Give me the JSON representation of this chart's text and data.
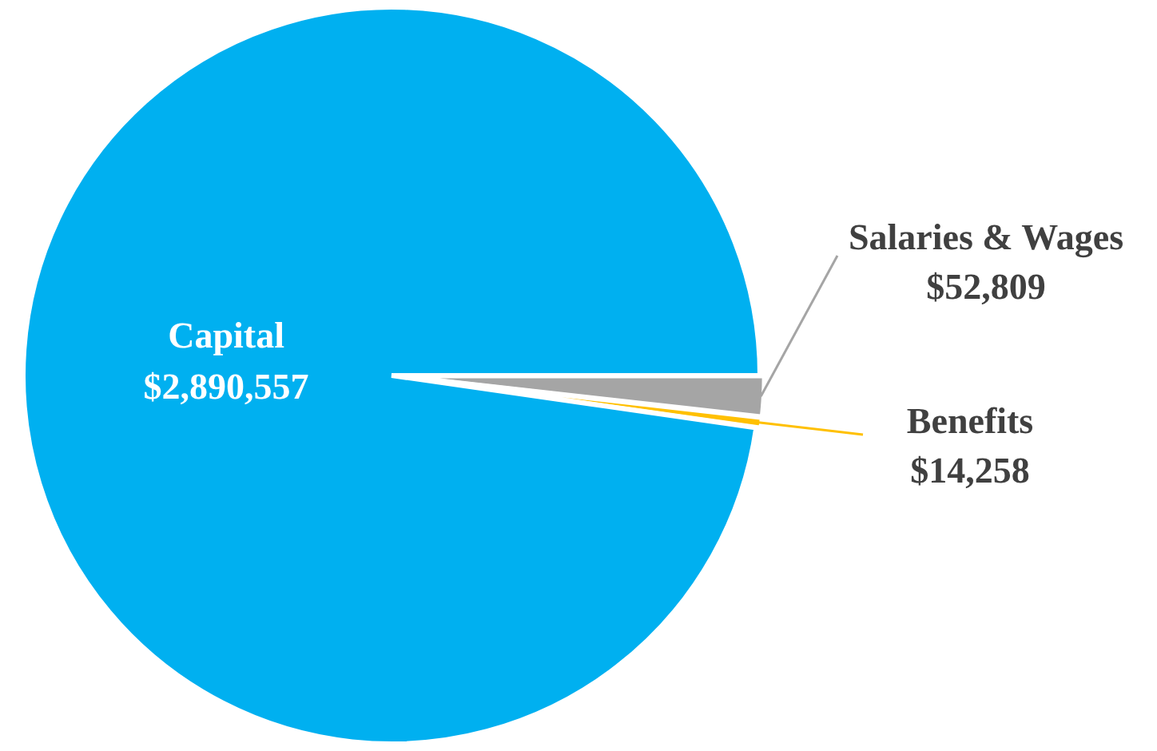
{
  "chart_data": {
    "type": "pie",
    "categories": [
      "Salaries & Wages",
      "Benefits",
      "Capital"
    ],
    "values": [
      52809,
      14258,
      2890557
    ],
    "colors": [
      "#a5a5a5",
      "#ffc000",
      "#00b0f0"
    ],
    "value_labels": [
      "$52,809",
      "$14,258",
      "$2,890,557"
    ],
    "legend": false
  }
}
